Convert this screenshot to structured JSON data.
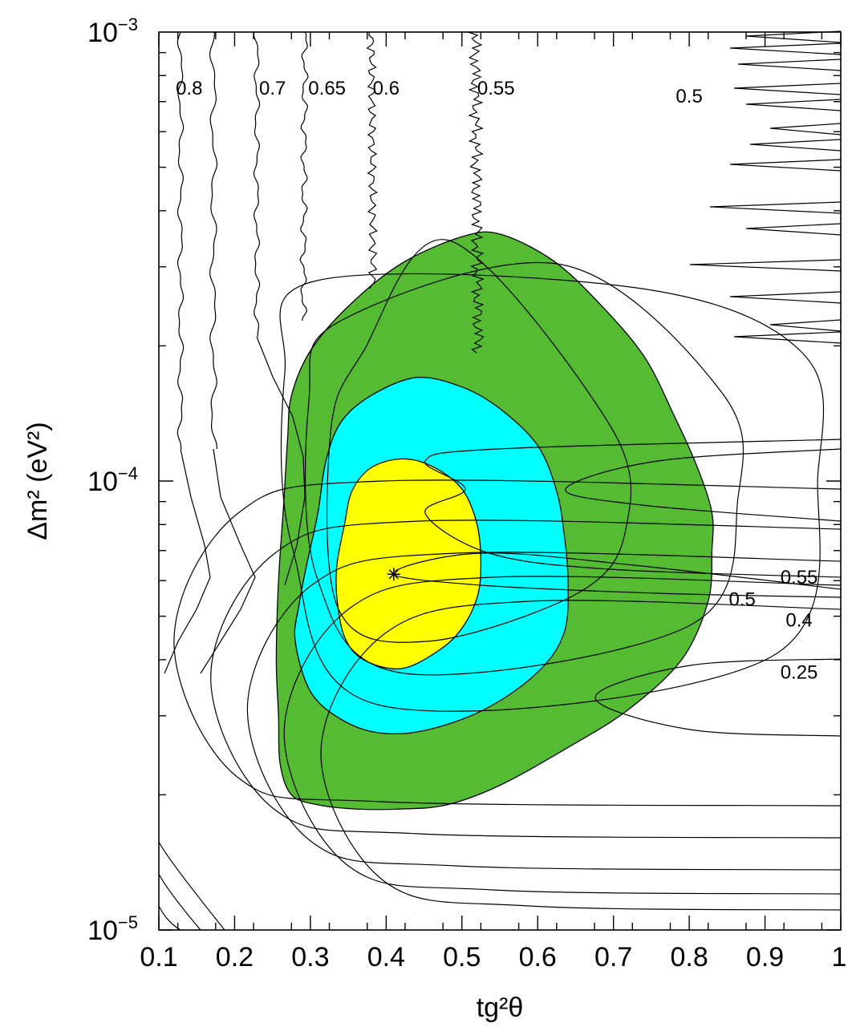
{
  "chart_data": {
    "type": "contour",
    "xlabel": "tg²θ",
    "ylabel": "Δm² (eV²)",
    "x_scale": "linear",
    "y_scale": "log",
    "xlim": [
      0.1,
      1.0
    ],
    "ylim": [
      1e-05,
      0.001
    ],
    "x_ticks": [
      {
        "value": 0.1,
        "label": "0.1"
      },
      {
        "value": 0.2,
        "label": "0.2"
      },
      {
        "value": 0.3,
        "label": "0.3"
      },
      {
        "value": 0.4,
        "label": "0.4"
      },
      {
        "value": 0.5,
        "label": "0.5"
      },
      {
        "value": 0.6,
        "label": "0.6"
      },
      {
        "value": 0.7,
        "label": "0.7"
      },
      {
        "value": 0.8,
        "label": "0.8"
      },
      {
        "value": 0.9,
        "label": "0.9"
      },
      {
        "value": 1.0,
        "label": "1"
      }
    ],
    "y_ticks": [
      {
        "value": 1e-05,
        "mantissa": "10",
        "exponent": "−5"
      },
      {
        "value": 0.0001,
        "mantissa": "10",
        "exponent": "−4"
      },
      {
        "value": 0.001,
        "mantissa": "10",
        "exponent": "−3"
      }
    ],
    "best_fit": {
      "x": 0.41,
      "y": 6.2e-05,
      "marker": "asterisk"
    },
    "allowed_regions": [
      {
        "level": "outer",
        "color": "#55bb33",
        "points": [
          [
            0.26,
            2.35e-05
          ],
          [
            0.275,
            2e-05
          ],
          [
            0.31,
            1.9e-05
          ],
          [
            0.36,
            1.86e-05
          ],
          [
            0.42,
            1.86e-05
          ],
          [
            0.48,
            1.9e-05
          ],
          [
            0.55,
            2.1e-05
          ],
          [
            0.64,
            2.55e-05
          ],
          [
            0.72,
            3.1e-05
          ],
          [
            0.79,
            4e-05
          ],
          [
            0.825,
            5.4e-05
          ],
          [
            0.83,
            7e-05
          ],
          [
            0.83,
            8.5e-05
          ],
          [
            0.81,
            0.000108
          ],
          [
            0.78,
            0.00014
          ],
          [
            0.74,
            0.00019
          ],
          [
            0.68,
            0.00025
          ],
          [
            0.62,
            0.00031
          ],
          [
            0.55,
            0.000355
          ],
          [
            0.5,
            0.00035
          ],
          [
            0.42,
            0.000305
          ],
          [
            0.35,
            0.000245
          ],
          [
            0.3,
            0.000195
          ],
          [
            0.275,
            0.000155
          ],
          [
            0.27,
            0.000125
          ],
          [
            0.265,
            9e-05
          ],
          [
            0.258,
            6e-05
          ],
          [
            0.255,
            4e-05
          ],
          [
            0.258,
            3e-05
          ]
        ]
      },
      {
        "level": "middle",
        "color": "#00ffff",
        "points": [
          [
            0.28,
            4.4e-05
          ],
          [
            0.3,
            3.4e-05
          ],
          [
            0.34,
            2.95e-05
          ],
          [
            0.39,
            2.75e-05
          ],
          [
            0.45,
            2.78e-05
          ],
          [
            0.53,
            3.1e-05
          ],
          [
            0.6,
            3.75e-05
          ],
          [
            0.635,
            4.6e-05
          ],
          [
            0.64,
            6e-05
          ],
          [
            0.635,
            7.6e-05
          ],
          [
            0.625,
            9.5e-05
          ],
          [
            0.6,
            0.00012
          ],
          [
            0.55,
            0.000145
          ],
          [
            0.5,
            0.000162
          ],
          [
            0.44,
            0.00017
          ],
          [
            0.38,
            0.000155
          ],
          [
            0.34,
            0.000135
          ],
          [
            0.32,
            0.00011
          ],
          [
            0.31,
            8.5e-05
          ],
          [
            0.295,
            6.5e-05
          ],
          [
            0.285,
            5.3e-05
          ]
        ]
      },
      {
        "level": "inner",
        "color": "#ffff00",
        "points": [
          [
            0.345,
            4.5e-05
          ],
          [
            0.37,
            4e-05
          ],
          [
            0.42,
            3.82e-05
          ],
          [
            0.47,
            4.2e-05
          ],
          [
            0.5,
            4.7e-05
          ],
          [
            0.52,
            5.5e-05
          ],
          [
            0.525,
            6.5e-05
          ],
          [
            0.52,
            8e-05
          ],
          [
            0.5,
            9.6e-05
          ],
          [
            0.46,
            0.000108
          ],
          [
            0.42,
            0.000112
          ],
          [
            0.38,
            0.000107
          ],
          [
            0.355,
            9.5e-05
          ],
          [
            0.345,
            8e-05
          ],
          [
            0.335,
            6.5e-05
          ],
          [
            0.335,
            5.5e-05
          ]
        ]
      }
    ],
    "contour_labels": [
      {
        "text": "0.8",
        "x": 0.14,
        "y": 0.00075
      },
      {
        "text": "0.7",
        "x": 0.25,
        "y": 0.00075
      },
      {
        "text": "0.65",
        "x": 0.322,
        "y": 0.00075
      },
      {
        "text": "0.6",
        "x": 0.4,
        "y": 0.00075
      },
      {
        "text": "0.55",
        "x": 0.545,
        "y": 0.00075
      },
      {
        "text": "0.5",
        "x": 0.8,
        "y": 0.00072
      },
      {
        "text": "0.55",
        "x": 0.945,
        "y": 6.1e-05
      },
      {
        "text": "0.5",
        "x": 0.87,
        "y": 5.45e-05
      },
      {
        "text": "0.4",
        "x": 0.945,
        "y": 4.9e-05
      },
      {
        "text": "0.25",
        "x": 0.945,
        "y": 3.75e-05
      }
    ]
  }
}
